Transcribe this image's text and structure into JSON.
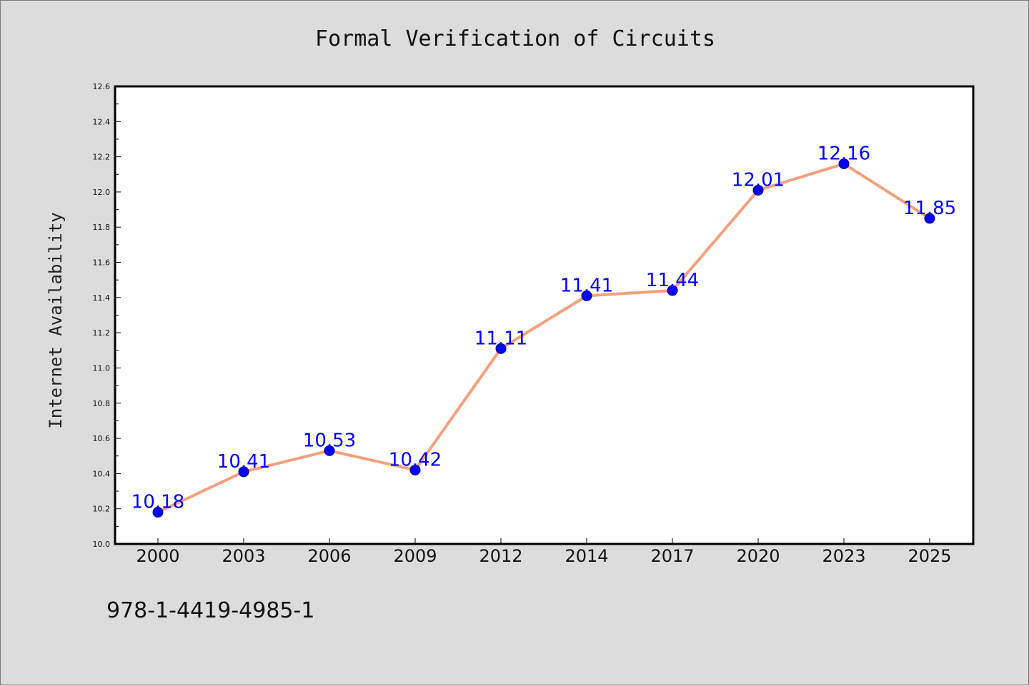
{
  "chart_data": {
    "type": "line",
    "title": "Formal Verification of Circuits",
    "xlabel": "",
    "ylabel": "Internet Availability",
    "categories": [
      "2000",
      "2003",
      "2006",
      "2009",
      "2012",
      "2014",
      "2017",
      "2020",
      "2023",
      "2025"
    ],
    "series": [
      {
        "values": [
          10.18,
          10.41,
          10.53,
          10.42,
          11.11,
          11.41,
          11.44,
          12.01,
          12.16,
          11.85
        ],
        "line_color": "#f4a07c",
        "marker_color": "#0000ff"
      }
    ],
    "data_labels": [
      "10.18",
      "10.41",
      "10.53",
      "10.42",
      "11.11",
      "11.41",
      "11.44",
      "12.01",
      "12.16",
      "11.85"
    ],
    "ylim": [
      10.0,
      12.6
    ],
    "yticks": [
      "10.0",
      "10.2",
      "10.4",
      "10.6",
      "10.8",
      "11.0",
      "11.2",
      "11.4",
      "11.6",
      "11.8",
      "12.0",
      "12.2",
      "12.4",
      "12.6"
    ],
    "grid": false,
    "legend": "none"
  },
  "footer": {
    "isbn": "978-1-4419-4985-1"
  },
  "colors": {
    "background": "#dcdcdc",
    "plot_background": "#ffffff",
    "line": "#f4a07c",
    "marker": "#0000ff",
    "data_label": "#0000ff"
  }
}
